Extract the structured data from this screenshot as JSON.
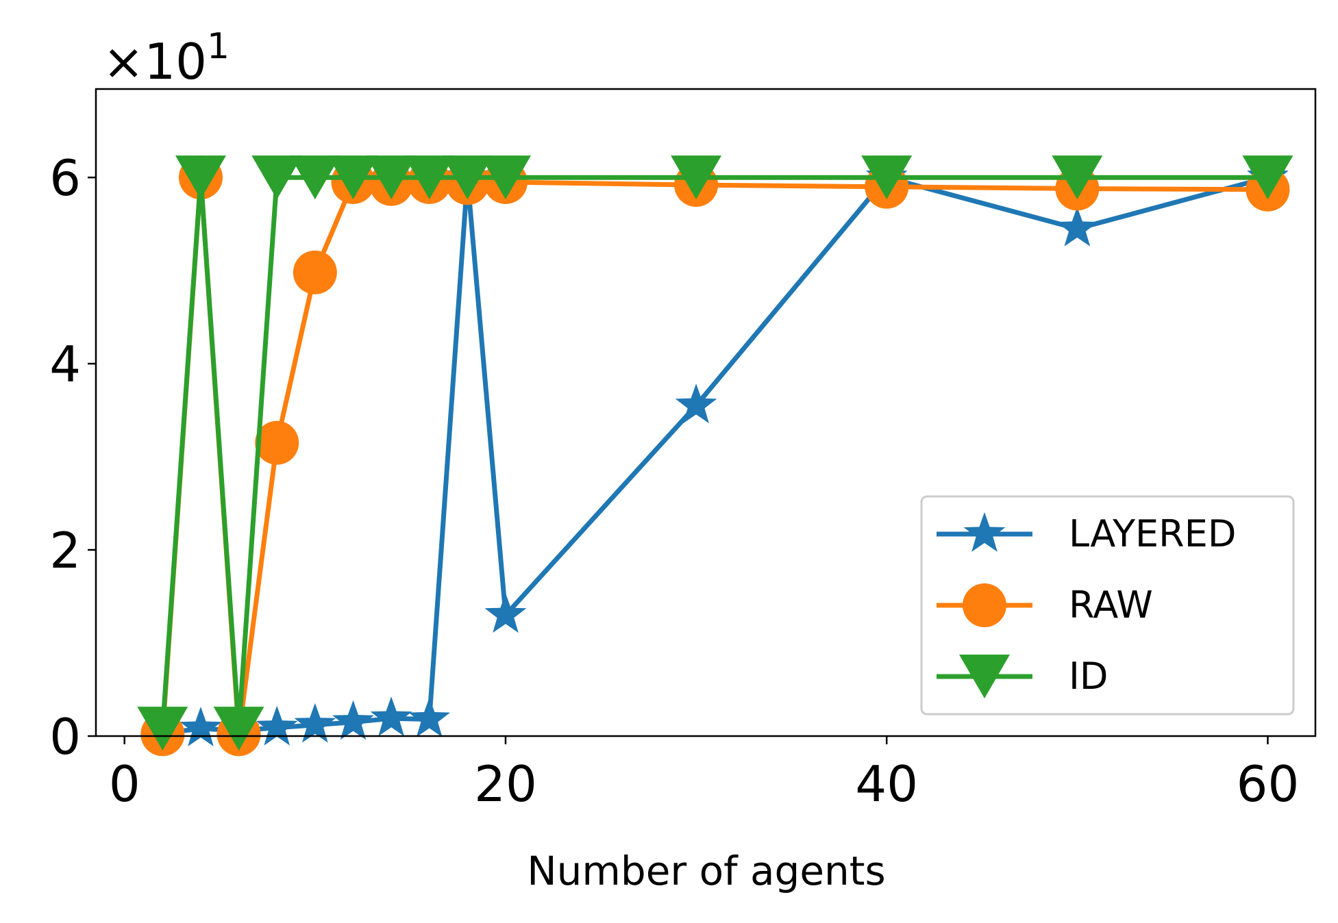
{
  "chart_data": {
    "type": "line",
    "title": "",
    "xlabel": "Number of agents",
    "ylabel": "",
    "offset_label": "×10",
    "offset_exponent": "1",
    "xlim": [
      -1.5,
      62.5
    ],
    "ylim": [
      0,
      6.95
    ],
    "xticks": [
      0,
      20,
      40,
      60
    ],
    "xtick_labels": [
      "0",
      "20",
      "40",
      "60"
    ],
    "yticks": [
      0,
      2,
      4,
      6
    ],
    "ytick_labels": [
      "0",
      "2",
      "4",
      "6"
    ],
    "grid": false,
    "legend_position": "lower-right",
    "series": [
      {
        "name": "LAYERED",
        "color": "#1f77b4",
        "marker": "star",
        "x": [
          2,
          4,
          6,
          8,
          10,
          12,
          14,
          16,
          18,
          20,
          30,
          40,
          50,
          60
        ],
        "y": [
          0.03,
          0.08,
          0.06,
          0.09,
          0.12,
          0.15,
          0.19,
          0.18,
          6.0,
          1.3,
          3.55,
          6.0,
          5.45,
          6.0
        ]
      },
      {
        "name": "RAW",
        "color": "#ff7f0e",
        "marker": "circle",
        "x": [
          2,
          4,
          6,
          8,
          10,
          12,
          14,
          16,
          18,
          20,
          30,
          40,
          50,
          60
        ],
        "y": [
          0.02,
          6.0,
          0.02,
          3.15,
          4.98,
          5.95,
          5.93,
          5.95,
          5.94,
          5.95,
          5.92,
          5.9,
          5.88,
          5.87
        ]
      },
      {
        "name": "ID",
        "color": "#2ca02c",
        "marker": "triangle-down",
        "x": [
          2,
          4,
          6,
          8,
          10,
          12,
          14,
          16,
          18,
          20,
          30,
          40,
          50,
          60
        ],
        "y": [
          0.08,
          6.0,
          0.08,
          6.0,
          6.0,
          6.0,
          6.0,
          6.0,
          6.0,
          6.0,
          6.0,
          6.0,
          6.0,
          6.0
        ]
      }
    ]
  }
}
